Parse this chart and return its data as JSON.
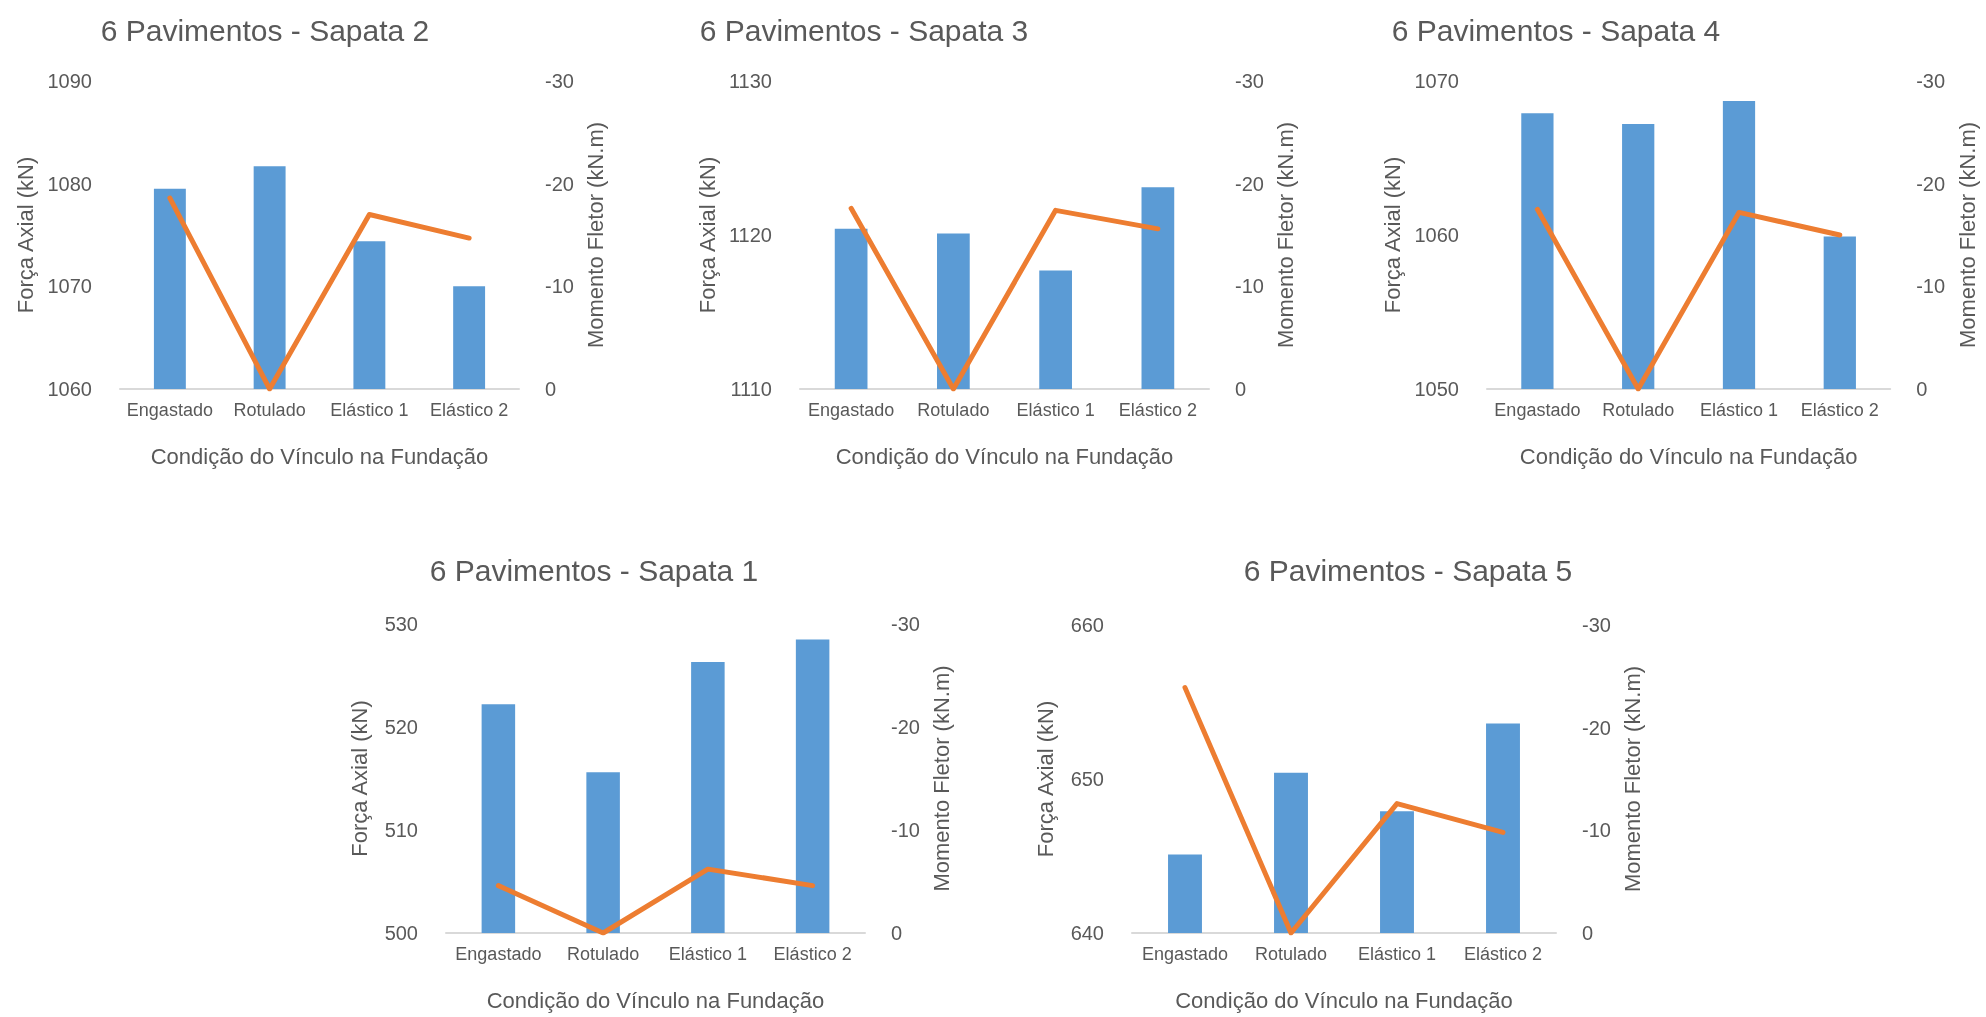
{
  "chart_data": [
    {
      "type": "bar",
      "title": "6 Pavimentos - Sapata 2",
      "xlabel": "Condição do Vínculo na Fundação",
      "ylabel": "Força Axial (kN)",
      "y2label": "Momento Fletor (kN.m)",
      "categories": [
        "Engastado",
        "Rotulado",
        "Elástico 1",
        "Elástico 2"
      ],
      "series": [
        {
          "color": "#5b9bd5",
          "values": [
            1079.5,
            1081.7,
            1074.4,
            1070.0
          ]
        },
        {
          "type": "line",
          "axis": "y2",
          "color": "#ed7d31",
          "values": [
            -18.6,
            0,
            -17.0,
            -14.7
          ]
        }
      ],
      "ylim": [
        1060,
        1090
      ],
      "yticks": [
        1060,
        1070,
        1080,
        1090
      ],
      "y2lim": [
        0,
        -30
      ],
      "y2ticks": [
        0,
        -10,
        -20,
        -30
      ],
      "grid": false,
      "marker": "none",
      "line_style": "solid"
    },
    {
      "type": "bar",
      "title": "6 Pavimentos - Sapata 3",
      "xlabel": "Condição do Vínculo na Fundação",
      "ylabel": "Força Axial (kN)",
      "y2label": "Momento Fletor (kN.m)",
      "categories": [
        "Engastado",
        "Rotulado",
        "Elástico 1",
        "Elástico 2"
      ],
      "series": [
        {
          "color": "#5b9bd5",
          "values": [
            1120.4,
            1120.1,
            1117.7,
            1123.1
          ]
        },
        {
          "type": "line",
          "axis": "y2",
          "color": "#ed7d31",
          "values": [
            -17.6,
            0,
            -17.4,
            -15.6
          ]
        }
      ],
      "ylim": [
        1110,
        1130
      ],
      "yticks": [
        1110,
        1120,
        1130
      ],
      "y2lim": [
        0,
        -30
      ],
      "y2ticks": [
        0,
        -10,
        -20,
        -30
      ],
      "grid": false,
      "marker": "none",
      "line_style": "solid"
    },
    {
      "type": "bar",
      "title": "6 Pavimentos - Sapata 4",
      "xlabel": "Condição do Vínculo na Fundação",
      "ylabel": "Força Axial (kN)",
      "y2label": "Momento Fletor (kN.m)",
      "categories": [
        "Engastado",
        "Rotulado",
        "Elástico 1",
        "Elástico 2"
      ],
      "series": [
        {
          "color": "#5b9bd5",
          "values": [
            1067.9,
            1067.2,
            1068.7,
            1059.9
          ]
        },
        {
          "type": "line",
          "axis": "y2",
          "color": "#ed7d31",
          "values": [
            -17.5,
            0,
            -17.2,
            -15.0
          ]
        }
      ],
      "ylim": [
        1050,
        1070
      ],
      "yticks": [
        1050,
        1060,
        1070
      ],
      "y2lim": [
        0,
        -30
      ],
      "y2ticks": [
        0,
        -10,
        -20,
        -30
      ],
      "grid": false,
      "marker": "none",
      "line_style": "solid"
    },
    {
      "type": "bar",
      "title": "6 Pavimentos - Sapata 1",
      "xlabel": "Condição do Vínculo na Fundação",
      "ylabel": "Força Axial (kN)",
      "y2label": "Momento Fletor (kN.m)",
      "categories": [
        "Engastado",
        "Rotulado",
        "Elástico 1",
        "Elástico 2"
      ],
      "series": [
        {
          "color": "#5b9bd5",
          "values": [
            522.2,
            515.6,
            526.3,
            528.5
          ]
        },
        {
          "type": "line",
          "axis": "y2",
          "color": "#ed7d31",
          "values": [
            -4.6,
            0,
            -6.2,
            -4.6
          ]
        }
      ],
      "ylim": [
        500,
        530
      ],
      "yticks": [
        500,
        510,
        520,
        530
      ],
      "y2lim": [
        0,
        -30
      ],
      "y2ticks": [
        0,
        -10,
        -20,
        -30
      ],
      "grid": false,
      "marker": "none",
      "line_style": "solid"
    },
    {
      "type": "bar",
      "title": "6 Pavimentos - Sapata 5",
      "xlabel": "Condição do Vínculo na Fundação",
      "ylabel": "Força Axial (kN)",
      "y2label": "Momento Fletor (kN.m)",
      "categories": [
        "Engastado",
        "Rotulado",
        "Elástico 1",
        "Elástico 2"
      ],
      "series": [
        {
          "color": "#5b9bd5",
          "values": [
            645.1,
            650.4,
            647.9,
            653.6
          ]
        },
        {
          "type": "line",
          "axis": "y2",
          "color": "#ed7d31",
          "values": [
            -23.9,
            0,
            -12.6,
            -9.8
          ]
        }
      ],
      "ylim": [
        640,
        660
      ],
      "yticks": [
        640,
        650,
        660
      ],
      "y2lim": [
        0,
        -30
      ],
      "y2ticks": [
        0,
        -10,
        -20,
        -30
      ],
      "grid": false,
      "marker": "none",
      "line_style": "solid"
    }
  ]
}
